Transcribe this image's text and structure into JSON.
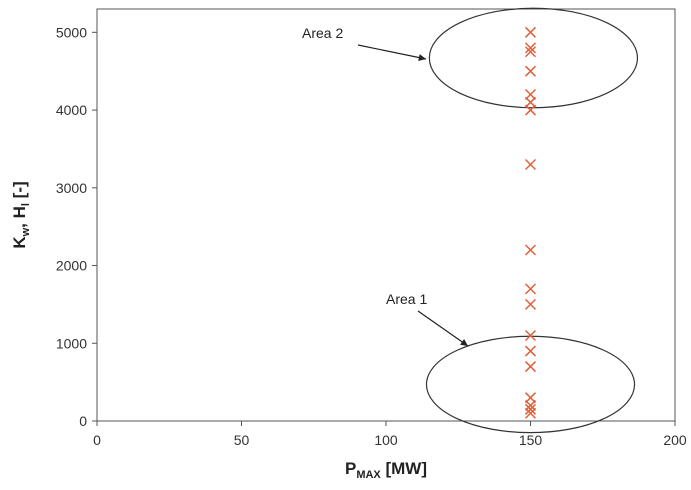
{
  "chart_data": {
    "type": "scatter",
    "title": "",
    "xlabel": {
      "main": "P",
      "sub": "MAX",
      "rest": " [MW]"
    },
    "ylabel": {
      "p1": "K",
      "s1": "w",
      "p2": ", H",
      "s2": "l",
      "p3": " [-]"
    },
    "xlim": [
      0,
      200
    ],
    "ylim": [
      0,
      5300
    ],
    "x_ticks": [
      0,
      50,
      100,
      150,
      200
    ],
    "y_ticks": [
      0,
      1000,
      2000,
      3000,
      4000,
      5000
    ],
    "grid": false,
    "marker": "x",
    "marker_color": "#e0603a",
    "series": [
      {
        "points": [
          {
            "x": 150,
            "y": 5000
          },
          {
            "x": 150,
            "y": 4800
          },
          {
            "x": 150,
            "y": 4750
          },
          {
            "x": 150,
            "y": 4500
          },
          {
            "x": 150,
            "y": 4200
          },
          {
            "x": 150,
            "y": 4100
          },
          {
            "x": 150,
            "y": 4000
          },
          {
            "x": 150,
            "y": 3300
          },
          {
            "x": 150,
            "y": 2200
          },
          {
            "x": 150,
            "y": 1700
          },
          {
            "x": 150,
            "y": 1500
          },
          {
            "x": 150,
            "y": 1100
          },
          {
            "x": 150,
            "y": 900
          },
          {
            "x": 150,
            "y": 700
          },
          {
            "x": 150,
            "y": 300
          },
          {
            "x": 150,
            "y": 200
          },
          {
            "x": 150,
            "y": 150
          },
          {
            "x": 150,
            "y": 100
          }
        ]
      }
    ],
    "annotations": [
      {
        "label": "Area 1",
        "ellipse_center": {
          "x": 150,
          "y": 470
        },
        "ellipse_radius": {
          "x": 36,
          "y": 620
        }
      },
      {
        "label": "Area 2",
        "ellipse_center": {
          "x": 151,
          "y": 4670
        },
        "ellipse_radius": {
          "x": 36,
          "y": 640
        }
      }
    ]
  }
}
